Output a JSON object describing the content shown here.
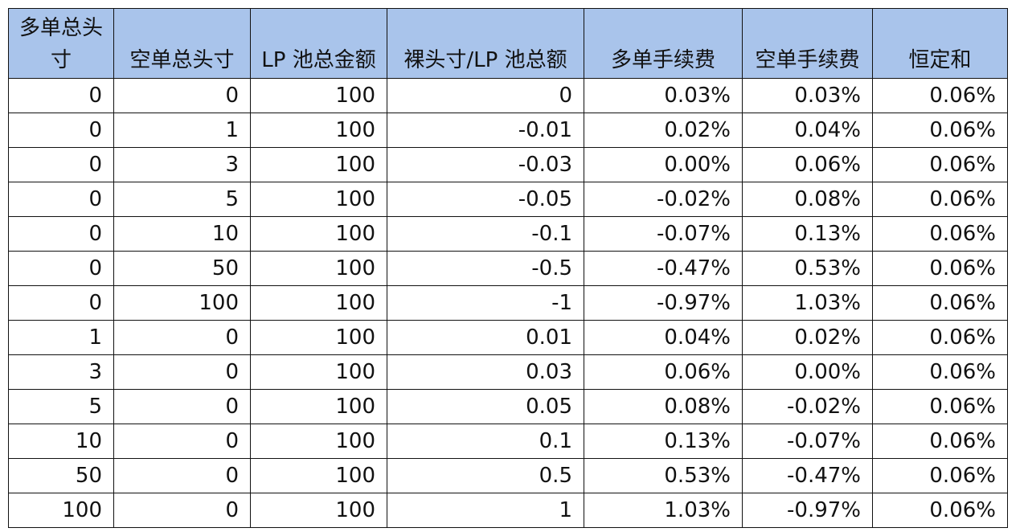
{
  "table": {
    "headers": [
      "多单总头寸",
      "空单总头寸",
      "LP 池总金额",
      "裸头寸/LP 池总额",
      "多单手续费",
      "空单手续费",
      "恒定和"
    ],
    "header_fill": "#a9c4eb",
    "rows": [
      [
        "0",
        "0",
        "100",
        "0",
        "0.03%",
        "0.03%",
        "0.06%"
      ],
      [
        "0",
        "1",
        "100",
        "-0.01",
        "0.02%",
        "0.04%",
        "0.06%"
      ],
      [
        "0",
        "3",
        "100",
        "-0.03",
        "0.00%",
        "0.06%",
        "0.06%"
      ],
      [
        "0",
        "5",
        "100",
        "-0.05",
        "-0.02%",
        "0.08%",
        "0.06%"
      ],
      [
        "0",
        "10",
        "100",
        "-0.1",
        "-0.07%",
        "0.13%",
        "0.06%"
      ],
      [
        "0",
        "50",
        "100",
        "-0.5",
        "-0.47%",
        "0.53%",
        "0.06%"
      ],
      [
        "0",
        "100",
        "100",
        "-1",
        "-0.97%",
        "1.03%",
        "0.06%"
      ],
      [
        "1",
        "0",
        "100",
        "0.01",
        "0.04%",
        "0.02%",
        "0.06%"
      ],
      [
        "3",
        "0",
        "100",
        "0.03",
        "0.06%",
        "0.00%",
        "0.06%"
      ],
      [
        "5",
        "0",
        "100",
        "0.05",
        "0.08%",
        "-0.02%",
        "0.06%"
      ],
      [
        "10",
        "0",
        "100",
        "0.1",
        "0.13%",
        "-0.07%",
        "0.06%"
      ],
      [
        "50",
        "0",
        "100",
        "0.5",
        "0.53%",
        "-0.47%",
        "0.06%"
      ],
      [
        "100",
        "0",
        "100",
        "1",
        "1.03%",
        "-0.97%",
        "0.06%"
      ]
    ]
  }
}
